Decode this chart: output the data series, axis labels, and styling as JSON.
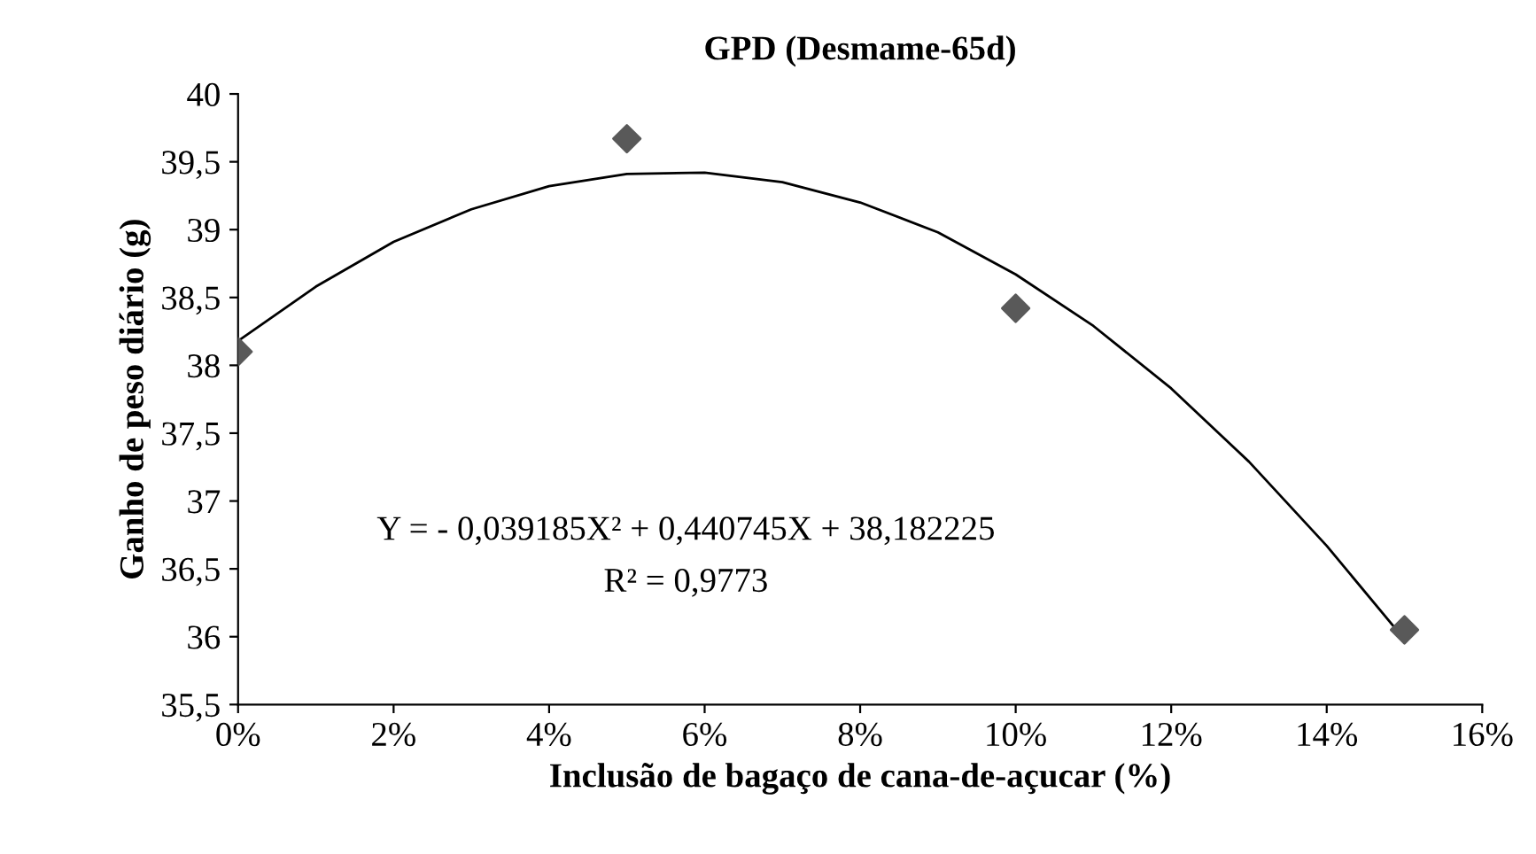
{
  "chart_data": {
    "type": "scatter",
    "title": "GPD (Desmame-65d)",
    "xlabel": "Inclusão de bagaço de cana-de-açucar (%)",
    "ylabel": "Ganho de peso diário (g)",
    "xlim": [
      0,
      16
    ],
    "xticks": [
      {
        "value": 0,
        "label": "0%"
      },
      {
        "value": 2,
        "label": "2%"
      },
      {
        "value": 4,
        "label": "4%"
      },
      {
        "value": 6,
        "label": "6%"
      },
      {
        "value": 8,
        "label": "8%"
      },
      {
        "value": 10,
        "label": "10%"
      },
      {
        "value": 12,
        "label": "12%"
      },
      {
        "value": 14,
        "label": "14%"
      },
      {
        "value": 16,
        "label": "16%"
      }
    ],
    "ylim": [
      35.5,
      40
    ],
    "yticks": [
      {
        "value": 35.5,
        "label": "35,5"
      },
      {
        "value": 36,
        "label": "36"
      },
      {
        "value": 36.5,
        "label": "36,5"
      },
      {
        "value": 37,
        "label": "37"
      },
      {
        "value": 37.5,
        "label": "37,5"
      },
      {
        "value": 38,
        "label": "38"
      },
      {
        "value": 38.5,
        "label": "38,5"
      },
      {
        "value": 39,
        "label": "39"
      },
      {
        "value": 39.5,
        "label": "39,5"
      },
      {
        "value": 40,
        "label": "40"
      }
    ],
    "grid": false,
    "legend": false,
    "series": [
      {
        "color": "#595959",
        "marker": "diamond",
        "x": [
          0,
          5,
          10,
          15
        ],
        "values": [
          38.1,
          39.67,
          38.42,
          36.05
        ]
      },
      {
        "type": "line",
        "color": "#000000",
        "marker": "none",
        "line_style": "solid",
        "x": [
          0,
          1,
          2,
          3,
          4,
          5,
          6,
          7,
          8,
          9,
          10,
          11,
          12,
          13,
          14,
          15
        ],
        "values": [
          38.18,
          38.58,
          38.91,
          39.15,
          39.32,
          39.41,
          39.42,
          39.35,
          39.2,
          38.98,
          38.67,
          38.29,
          37.83,
          37.29,
          36.67,
          35.98
        ]
      }
    ],
    "annotations": [
      "Y = - 0,039185X² + 0,440745X + 38,182225",
      "R² = 0,9773"
    ]
  }
}
